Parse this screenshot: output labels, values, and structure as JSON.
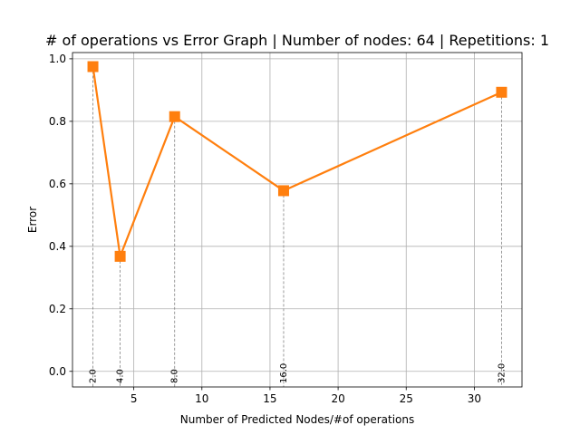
{
  "chart_data": {
    "type": "line",
    "title": "# of operations vs Error Graph | Number of nodes: 64 | Repetitions: 1",
    "xlabel": "Number of Predicted Nodes/#of operations",
    "ylabel": "Error",
    "xlim": [
      0.5,
      33.5
    ],
    "ylim": [
      -0.05,
      1.02
    ],
    "xticks": [
      5,
      10,
      15,
      20,
      25,
      30
    ],
    "yticks": [
      0.0,
      0.2,
      0.4,
      0.6,
      0.8,
      1.0
    ],
    "xtick_labels": [
      "5",
      "10",
      "15",
      "20",
      "25",
      "30"
    ],
    "ytick_labels": [
      "0.0",
      "0.2",
      "0.4",
      "0.6",
      "0.8",
      "1.0"
    ],
    "grid": true,
    "series": [
      {
        "x": [
          2,
          4,
          8,
          16,
          32
        ],
        "y": [
          0.975,
          0.368,
          0.815,
          0.578,
          0.893
        ],
        "color": "#ff7f0e",
        "marker": "square"
      }
    ],
    "point_labels": [
      "2.0",
      "4.0",
      "8.0",
      "16.0",
      "32.0"
    ]
  }
}
